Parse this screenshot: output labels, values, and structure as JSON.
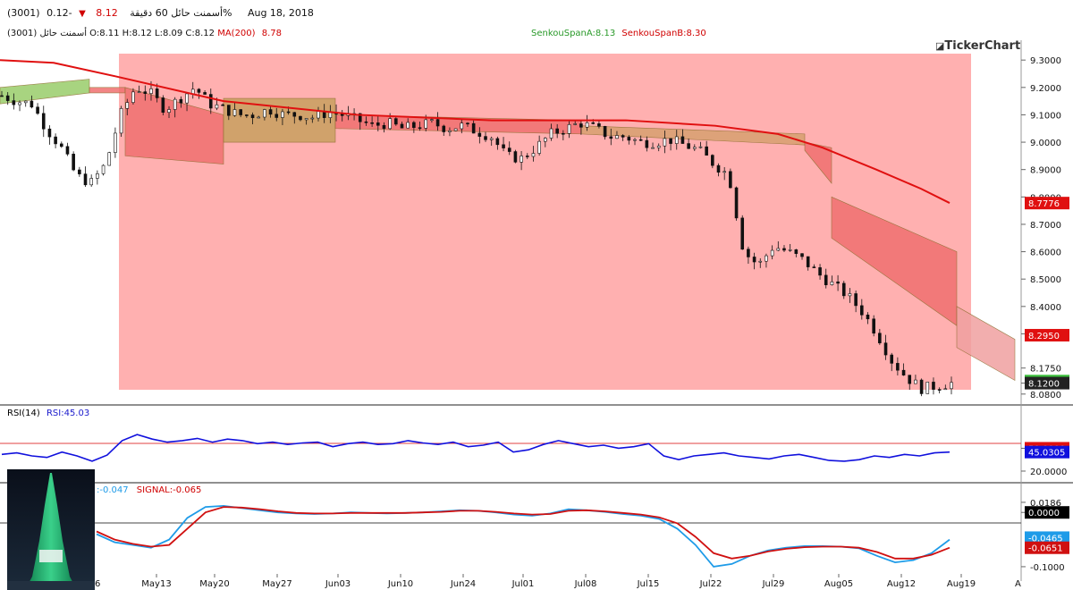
{
  "header": {
    "symbol": "(3001) أسمنت حائل",
    "timeframe": "60 دقيقة",
    "price": "8.12",
    "change": "-0.12%",
    "date": "Aug 18, 2018",
    "ohlc_prefix": "(3001) أسمنت حائل",
    "ohlc": "O:8.11 H:8.12 L:8.09 C:8.12",
    "ma_label": "MA(200)",
    "ma_value": "8.78",
    "senkou_a": "SenkouSpanA:8.13",
    "senkou_b": "SenkouSpanB:8.30",
    "logo": "TickerChart"
  },
  "rsi": {
    "label": "RSI(14)",
    "value_label": "RSI:45.03"
  },
  "macd": {
    "label": ":-0.047",
    "signal_label": "SIGNAL:-0.065"
  },
  "colors": {
    "ma": "#e01010",
    "cloud_bear": "#f07070",
    "cloud_bull": "#9acd6a",
    "zone": "#ffb0b0",
    "rsi": "#1010dd",
    "macd": "#1e9be8",
    "signal": "#d01010"
  },
  "chart_data": [
    {
      "type": "candlestick",
      "panel": "price",
      "y_ticks": [
        "9.3000",
        "9.2000",
        "9.1000",
        "9.0000",
        "8.9000",
        "8.8000",
        "8.7000",
        "8.6000",
        "8.5000",
        "8.4000",
        "8.3000",
        "8.1750",
        "8.1200",
        "8.0800"
      ],
      "ylim": [
        8.05,
        9.33
      ],
      "x_ticks": [
        "May13",
        "May20",
        "May27",
        "Jun03",
        "Jun10",
        "Jun24",
        "Jul01",
        "Jul08",
        "Jul15",
        "Jul22",
        "Jul29",
        "Aug05",
        "Aug12",
        "Aug19"
      ],
      "x_tick_first": "6",
      "x_tick_last": "A",
      "price_tags": [
        {
          "value": "8.7776",
          "type": "ma"
        },
        {
          "value": "8.2950",
          "type": "spanB"
        },
        {
          "value": "8.1275",
          "type": "spanA"
        },
        {
          "value": "8.1200",
          "type": "last"
        }
      ],
      "close_path": [
        9.17,
        9.15,
        9.14,
        9.05,
        8.98,
        8.88,
        8.85,
        8.92,
        9.1,
        9.2,
        9.18,
        9.12,
        9.16,
        9.2,
        9.14,
        9.12,
        9.1,
        9.1,
        9.12,
        9.1,
        9.1,
        9.09,
        9.11,
        9.1,
        9.08,
        9.06,
        9.07,
        9.05,
        9.06,
        9.07,
        9.05,
        9.06,
        9.04,
        9.02,
        8.95,
        8.94,
        8.98,
        9.03,
        9.05,
        9.07,
        9.05,
        9.02,
        9.02,
        9.0,
        9.0,
        9.01,
        8.99,
        8.97,
        8.92,
        8.88,
        8.6,
        8.55,
        8.62,
        8.6,
        8.57,
        8.52,
        8.48,
        8.44,
        8.38,
        8.3,
        8.2,
        8.14,
        8.1,
        8.11,
        8.12
      ]
    },
    {
      "type": "line",
      "panel": "rsi",
      "y_ticks": [
        "50.0000",
        "20.0000"
      ],
      "value_tag": "45.0305",
      "ylim": [
        0,
        100
      ],
      "values": [
        42,
        44,
        40,
        38,
        45,
        40,
        33,
        41,
        60,
        68,
        62,
        58,
        60,
        63,
        58,
        62,
        60,
        56,
        58,
        55,
        57,
        58,
        52,
        56,
        58,
        55,
        56,
        60,
        57,
        55,
        58,
        52,
        54,
        58,
        45,
        48,
        55,
        60,
        56,
        52,
        54,
        50,
        52,
        56,
        40,
        35,
        40,
        42,
        44,
        40,
        38,
        36,
        40,
        42,
        38,
        34,
        33,
        35,
        40,
        38,
        42,
        40,
        44,
        45
      ]
    },
    {
      "type": "line",
      "panel": "macd",
      "y_ticks": [
        "0.0186",
        "0.0000",
        "-0.1000"
      ],
      "value_tags": [
        "-0.0465",
        "-0.0651"
      ],
      "ylim": [
        -0.11,
        0.03
      ],
      "series": [
        {
          "name": "MACD",
          "values": [
            -0.04,
            -0.055,
            -0.06,
            -0.065,
            -0.05,
            -0.01,
            0.01,
            0.012,
            0.008,
            0.004,
            0.0,
            -0.002,
            -0.003,
            -0.002,
            0.0,
            -0.001,
            -0.002,
            -0.001,
            0.0,
            0.002,
            0.004,
            0.003,
            0.0,
            -0.004,
            -0.006,
            -0.002,
            0.006,
            0.004,
            0.001,
            -0.003,
            -0.006,
            -0.012,
            -0.03,
            -0.06,
            -0.1,
            -0.095,
            -0.08,
            -0.07,
            -0.065,
            -0.062,
            -0.062,
            -0.063,
            -0.066,
            -0.08,
            -0.092,
            -0.088,
            -0.075,
            -0.05
          ]
        },
        {
          "name": "SIGNAL",
          "values": [
            -0.035,
            -0.05,
            -0.058,
            -0.063,
            -0.06,
            -0.03,
            0.0,
            0.01,
            0.009,
            0.006,
            0.002,
            -0.001,
            -0.002,
            -0.002,
            -0.001,
            -0.001,
            -0.001,
            -0.001,
            0.0,
            0.001,
            0.003,
            0.003,
            0.001,
            -0.002,
            -0.004,
            -0.003,
            0.003,
            0.004,
            0.002,
            -0.001,
            -0.004,
            -0.009,
            -0.02,
            -0.045,
            -0.075,
            -0.085,
            -0.08,
            -0.072,
            -0.067,
            -0.064,
            -0.063,
            -0.063,
            -0.065,
            -0.073,
            -0.085,
            -0.085,
            -0.078,
            -0.065
          ]
        }
      ]
    }
  ]
}
